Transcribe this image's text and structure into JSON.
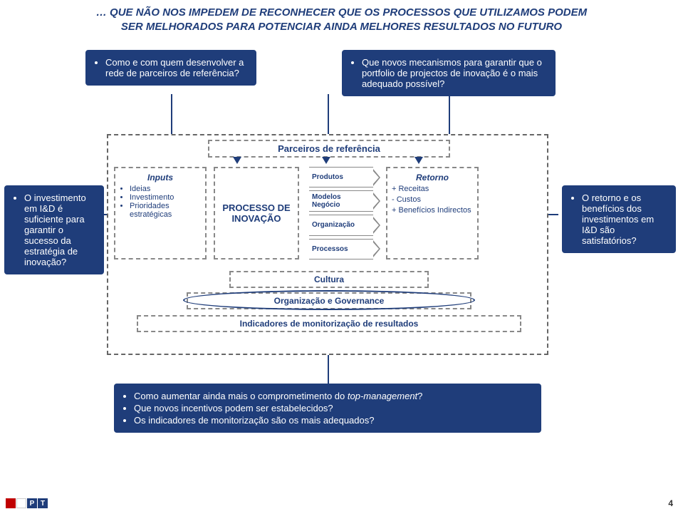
{
  "title": {
    "line1": "… QUE NÃO NOS IMPEDEM DE RECONHECER QUE OS PROCESSOS QUE UTILIZAMOS PODEM",
    "line2": "SER MELHORADOS PARA POTENCIAR AINDA MELHORES RESULTADOS NO FUTURO"
  },
  "callouts": {
    "top1": "Como e com quem desenvolver a rede de parceiros de referência?",
    "top2": "Que novos mecanismos para garantir que o portfolio de projectos de inovação é o mais adequado possível?",
    "left": "O investimento em I&D é suficiente para garantir o sucesso da estratégia de inovação?",
    "right": "O retorno e os benefícios dos investimentos em I&D são satisfatórios?",
    "bottom1": "Como aumentar ainda mais o comprometimento do top-management?",
    "bottom2": "Que novos incentivos podem ser estabelecidos?",
    "bottom3": "Os indicadores de monitorização são os mais adequados?"
  },
  "diagram": {
    "parceiros": "Parceiros de referência",
    "inputs": {
      "title": "Inputs",
      "items": [
        "Ideias",
        "Investimento",
        "Prioridades estratégicas"
      ]
    },
    "processo": "PROCESSO DE INOVAÇÃO",
    "outputs": [
      "Produtos",
      "Modelos Negócio",
      "Organização",
      "Processos"
    ],
    "retorno": {
      "title": "Retorno",
      "lines": [
        "+ Receitas",
        "- Custos",
        "+ Benefícios Indirectos"
      ]
    },
    "bands": {
      "cultura": "Cultura",
      "org": "Organização e Governance",
      "indic": "Indicadores de monitorização de resultados"
    }
  },
  "page": "4"
}
